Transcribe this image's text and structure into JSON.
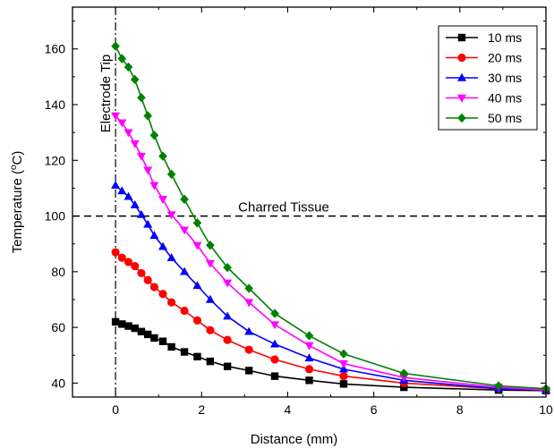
{
  "chart_data": {
    "type": "line",
    "title": "",
    "xlabel": "Distance (mm)",
    "ylabel": "Temperature (°C)",
    "ylabel_pre": "Temperature (",
    "ylabel_sup": "o",
    "ylabel_post": "C)",
    "xlim": [
      -1,
      10
    ],
    "ylim": [
      35,
      175
    ],
    "xticks": [
      0,
      2,
      4,
      6,
      8,
      10
    ],
    "yticks": [
      40,
      60,
      80,
      100,
      120,
      140,
      160
    ],
    "grid": false,
    "legend_position": "top-right",
    "annotations": {
      "electrode_label": "Electrode Tip",
      "electrode_x": 0,
      "charred_label": "Charred Tissue",
      "charred_y": 100
    },
    "series": [
      {
        "name": "10 ms",
        "color": "#000000",
        "marker": "square",
        "x": [
          0,
          0.15,
          0.3,
          0.45,
          0.6,
          0.75,
          0.9,
          1.1,
          1.3,
          1.6,
          1.9,
          2.2,
          2.6,
          3.1,
          3.7,
          4.5,
          5.3,
          6.7,
          8.9,
          10
        ],
        "y": [
          62,
          61.2,
          60.5,
          59.7,
          58.5,
          57.5,
          56.2,
          55,
          53,
          51.2,
          49.5,
          47.8,
          46,
          44.5,
          42.5,
          41,
          39.7,
          38.5,
          37.5,
          37.3
        ]
      },
      {
        "name": "20 ms",
        "color": "#ff0000",
        "marker": "circle",
        "x": [
          0,
          0.15,
          0.3,
          0.45,
          0.6,
          0.75,
          0.9,
          1.1,
          1.3,
          1.6,
          1.9,
          2.2,
          2.6,
          3.1,
          3.7,
          4.5,
          5.3,
          6.7,
          8.9,
          10
        ],
        "y": [
          87,
          85,
          83.5,
          82,
          79.5,
          77,
          74.5,
          72,
          69,
          66,
          62.5,
          59,
          55.5,
          52,
          48.5,
          45,
          42.5,
          40,
          38,
          37.5
        ]
      },
      {
        "name": "30 ms",
        "color": "#0000ff",
        "marker": "triangle-up",
        "x": [
          0,
          0.15,
          0.3,
          0.45,
          0.6,
          0.75,
          0.9,
          1.1,
          1.3,
          1.6,
          1.9,
          2.2,
          2.6,
          3.1,
          3.7,
          4.5,
          5.3,
          6.7,
          8.9,
          10
        ],
        "y": [
          111,
          109,
          107,
          104,
          100.5,
          97,
          93,
          89,
          85,
          80,
          75,
          70,
          64,
          58.5,
          54,
          49,
          45,
          41,
          38,
          37.5
        ]
      },
      {
        "name": "40 ms",
        "color": "#ff00ff",
        "marker": "triangle-down",
        "x": [
          0,
          0.15,
          0.3,
          0.45,
          0.6,
          0.75,
          0.9,
          1.1,
          1.3,
          1.6,
          1.9,
          2.2,
          2.6,
          3.1,
          3.7,
          4.5,
          5.3,
          6.7,
          8.9,
          10
        ],
        "y": [
          136,
          133.5,
          130,
          126,
          121.5,
          116.5,
          111,
          106,
          100.5,
          95,
          89.5,
          83,
          76,
          69,
          61,
          53.5,
          47,
          42,
          38.5,
          37.5
        ]
      },
      {
        "name": "50 ms",
        "color": "#008000",
        "marker": "diamond",
        "x": [
          0,
          0.15,
          0.3,
          0.45,
          0.6,
          0.75,
          0.9,
          1.1,
          1.3,
          1.6,
          1.9,
          2.2,
          2.6,
          3.1,
          3.7,
          4.5,
          5.3,
          6.7,
          8.9,
          10
        ],
        "y": [
          161,
          156.5,
          153.5,
          149,
          142.5,
          136,
          129,
          121.5,
          115,
          106,
          97.5,
          89.5,
          81.5,
          74,
          65,
          57,
          50.5,
          43.5,
          39,
          38
        ]
      }
    ]
  }
}
